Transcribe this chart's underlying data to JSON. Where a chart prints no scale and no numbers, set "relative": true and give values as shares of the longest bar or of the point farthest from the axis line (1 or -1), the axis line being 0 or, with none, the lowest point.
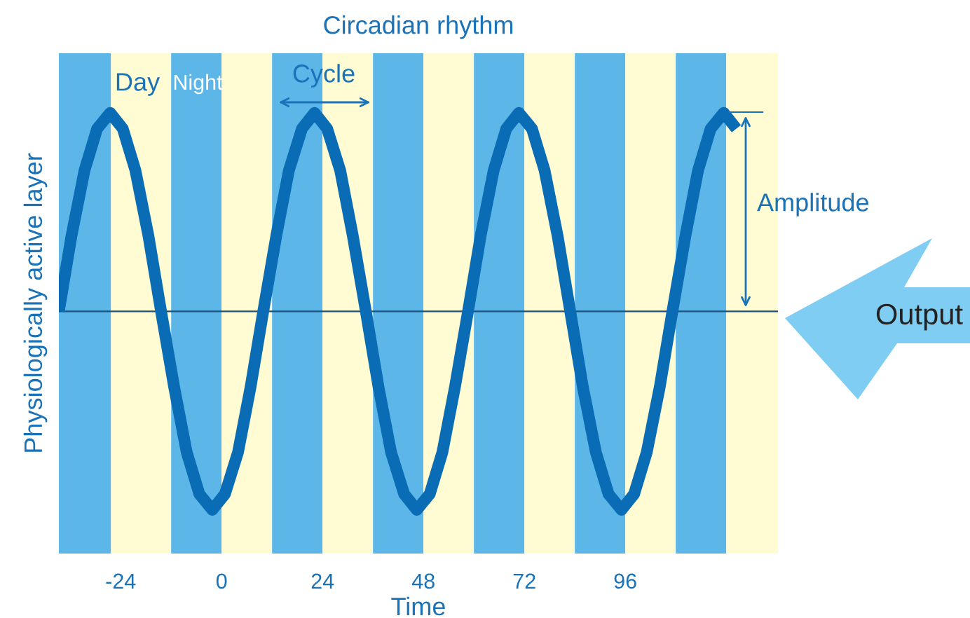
{
  "chart_data": {
    "type": "line",
    "title": "Circadian rhythm",
    "xlabel": "Time",
    "ylabel": "Physiologically active layer",
    "relative": true,
    "xlim": [
      -38.7,
      132.3
    ],
    "xticks": [
      -24,
      0,
      24,
      48,
      72,
      96
    ],
    "grid": false,
    "legend": false,
    "marker": "none",
    "line_style": "solid",
    "series": [
      {
        "color": "#0a6cb4",
        "x": [
          -38.7,
          -35.7,
          -32.6,
          -29.6,
          -26.5,
          -23.5,
          -20.5,
          -17.4,
          -14.4,
          -11.3,
          -8.3,
          -5.3,
          -2.2,
          0.8,
          3.9,
          6.9,
          9.9,
          13.0,
          16.0,
          19.1,
          22.1,
          25.1,
          28.2,
          31.2,
          34.3,
          37.3,
          40.3,
          43.4,
          46.4,
          49.5,
          52.5,
          55.5,
          58.6,
          61.6,
          64.7,
          67.7,
          70.7,
          73.8,
          76.8,
          79.9,
          82.9,
          85.9,
          89.0,
          92.0,
          95.1,
          98.1,
          101.1,
          104.2,
          107.2,
          110.3,
          113.3,
          116.3,
          119.4,
          122.4
        ],
        "values": [
          0,
          0.38,
          0.71,
          0.92,
          1,
          0.92,
          0.71,
          0.38,
          0,
          -0.38,
          -0.71,
          -0.92,
          -1,
          -0.92,
          -0.71,
          -0.38,
          0,
          0.38,
          0.71,
          0.92,
          1,
          0.92,
          0.71,
          0.38,
          0,
          -0.38,
          -0.71,
          -0.92,
          -1,
          -0.92,
          -0.71,
          -0.38,
          0,
          0.38,
          0.71,
          0.92,
          1,
          0.92,
          0.71,
          0.38,
          0,
          -0.38,
          -0.71,
          -0.92,
          -1,
          -0.92,
          -0.71,
          -0.38,
          0,
          0.38,
          0.71,
          0.92,
          1,
          0.92
        ]
      }
    ],
    "ref_lines": [
      {
        "axis": "y",
        "value": 0,
        "color": "#1a4f80"
      }
    ],
    "bands": [
      {
        "axis": "x",
        "from": -38.7,
        "to": -26.3,
        "color": "#5cb6e8"
      },
      {
        "axis": "x",
        "from": -26.3,
        "to": -12,
        "color": "#fffbd2"
      },
      {
        "axis": "x",
        "from": -12,
        "to": 0,
        "color": "#5cb6e8"
      },
      {
        "axis": "x",
        "from": 0,
        "to": 12,
        "color": "#fffbd2"
      },
      {
        "axis": "x",
        "from": 12,
        "to": 24,
        "color": "#5cb6e8"
      },
      {
        "axis": "x",
        "from": 24,
        "to": 36,
        "color": "#fffbd2"
      },
      {
        "axis": "x",
        "from": 36,
        "to": 48,
        "color": "#5cb6e8"
      },
      {
        "axis": "x",
        "from": 48,
        "to": 60,
        "color": "#fffbd2"
      },
      {
        "axis": "x",
        "from": 60,
        "to": 72,
        "color": "#5cb6e8"
      },
      {
        "axis": "x",
        "from": 72,
        "to": 84,
        "color": "#fffbd2"
      },
      {
        "axis": "x",
        "from": 84,
        "to": 96,
        "color": "#5cb6e8"
      },
      {
        "axis": "x",
        "from": 96,
        "to": 108,
        "color": "#fffbd2"
      },
      {
        "axis": "x",
        "from": 108,
        "to": 120,
        "color": "#5cb6e8"
      },
      {
        "axis": "x",
        "from": 120,
        "to": 132.3,
        "color": "#fffbd2"
      }
    ],
    "annotations": [
      "Day",
      "Night",
      "Cycle",
      "Amplitude",
      "Output"
    ]
  }
}
